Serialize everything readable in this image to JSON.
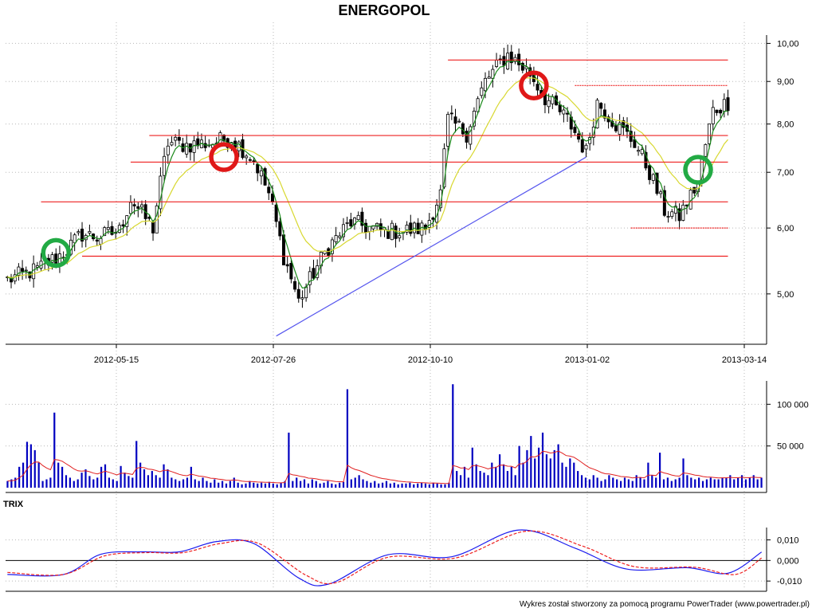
{
  "chart_data": [
    {
      "type": "candlestick",
      "title": "ENERGOPOL",
      "x_tick_labels": [
        "2012-05-15",
        "2012-07-26",
        "2012-10-10",
        "2013-01-02",
        "2013-03-14"
      ],
      "y_tick_labels": [
        "10,00",
        "9,00",
        "8,00",
        "7,00",
        "6,00",
        "5,00"
      ],
      "y_ticks": [
        10,
        9,
        8,
        7,
        6,
        5
      ],
      "ylim": [
        4.35,
        10.6
      ],
      "y_scale": "log",
      "grid": true,
      "price_path": [
        [
          0,
          5.2
        ],
        [
          8,
          5.35
        ],
        [
          15,
          5.6
        ],
        [
          20,
          5.9
        ],
        [
          24,
          5.85
        ],
        [
          30,
          5.95
        ],
        [
          33,
          6.5
        ],
        [
          36,
          6.25
        ],
        [
          39,
          6.0
        ],
        [
          43,
          7.6
        ],
        [
          48,
          7.55
        ],
        [
          55,
          7.6
        ],
        [
          60,
          7.7
        ],
        [
          66,
          7.25
        ],
        [
          70,
          6.6
        ],
        [
          74,
          5.55
        ],
        [
          78,
          4.9
        ],
        [
          81,
          5.2
        ],
        [
          86,
          5.7
        ],
        [
          92,
          6.1
        ],
        [
          100,
          5.95
        ],
        [
          106,
          5.95
        ],
        [
          112,
          6.0
        ],
        [
          116,
          6.6
        ],
        [
          118,
          8.1
        ],
        [
          123,
          7.8
        ],
        [
          128,
          9.0
        ],
        [
          134,
          9.7
        ],
        [
          140,
          9.2
        ],
        [
          144,
          8.6
        ],
        [
          150,
          8.1
        ],
        [
          155,
          7.4
        ],
        [
          158,
          8.5
        ],
        [
          163,
          8.0
        ],
        [
          168,
          7.6
        ],
        [
          172,
          7.0
        ],
        [
          176,
          6.3
        ],
        [
          180,
          6.2
        ],
        [
          185,
          6.8
        ],
        [
          189,
          8.3
        ],
        [
          193,
          8.5
        ]
      ],
      "support_resistance_levels": [
        {
          "value": 9.55,
          "from": 118,
          "to": 193
        },
        {
          "value": 8.9,
          "from": 152,
          "to": 193
        },
        {
          "value": 7.75,
          "from": 38,
          "to": 193
        },
        {
          "value": 7.2,
          "from": 33,
          "to": 193
        },
        {
          "value": 6.45,
          "from": 9,
          "to": 193
        },
        {
          "value": 6.0,
          "from": 167,
          "to": 193
        },
        {
          "value": 5.55,
          "from": 20,
          "to": 193
        }
      ],
      "trendline": {
        "from": [
          72,
          4.45
        ],
        "to": [
          155,
          7.3
        ]
      },
      "markers": [
        {
          "color": "#22aa44",
          "x": 13,
          "y": 5.6
        },
        {
          "color": "#e01818",
          "x": 58,
          "y": 7.3
        },
        {
          "color": "#e01818",
          "x": 141,
          "y": 8.9
        },
        {
          "color": "#22aa44",
          "x": 185,
          "y": 7.05
        }
      ],
      "series": [
        {
          "type": "candles",
          "color": "#000000"
        },
        {
          "type": "short moving average",
          "color": "#1a8a1a"
        },
        {
          "type": "long moving average",
          "color": "#d8d830"
        }
      ]
    },
    {
      "type": "bar",
      "y_tick_labels": [
        "100 000",
        "50 000"
      ],
      "y_ticks": [
        100000,
        50000
      ],
      "ylim": [
        0,
        128000
      ],
      "bar_color": "#0000c0",
      "average_line_color": "#e02020",
      "volumes": [
        8000,
        10000,
        12000,
        25000,
        30000,
        55000,
        52000,
        45000,
        30000,
        8000,
        10000,
        12000,
        90000,
        30000,
        25000,
        15000,
        12000,
        8000,
        10000,
        18000,
        22000,
        14000,
        10000,
        12000,
        25000,
        28000,
        12000,
        10000,
        8000,
        26000,
        18000,
        14000,
        12000,
        56000,
        30000,
        22000,
        15000,
        20000,
        15000,
        12000,
        28000,
        22000,
        12000,
        10000,
        8000,
        10000,
        12000,
        25000,
        10000,
        8000,
        12000,
        8000,
        6000,
        10000,
        6000,
        8000,
        5000,
        8000,
        12000,
        6000,
        4000,
        5000,
        8000,
        6000,
        5000,
        6000,
        5000,
        7000,
        5000,
        4000,
        6000,
        8000,
        66000,
        8000,
        12000,
        8000,
        10000,
        5000,
        10000,
        8000,
        5000,
        6000,
        8000,
        5000,
        4000,
        6000,
        7000,
        118000,
        10000,
        12000,
        15000,
        10000,
        8000,
        6000,
        8000,
        5000,
        6000,
        8000,
        5000,
        6000,
        4000,
        5000,
        5000,
        6000,
        4000,
        5000,
        6000,
        5000,
        4000,
        6000,
        5000,
        4000,
        4000,
        6000,
        124000,
        20000,
        15000,
        25000,
        12000,
        48000,
        28000,
        20000,
        18000,
        15000,
        30000,
        25000,
        40000,
        28000,
        20000,
        25000,
        15000,
        50000,
        30000,
        45000,
        62000,
        35000,
        48000,
        66000,
        40000,
        35000,
        45000,
        52000,
        30000,
        25000,
        35000,
        30000,
        20000,
        15000,
        12000,
        10000,
        15000,
        12000,
        8000,
        10000,
        15000,
        12000,
        10000,
        8000,
        12000,
        10000,
        8000,
        15000,
        12000,
        10000,
        30000,
        15000,
        12000,
        42000,
        10000,
        12000,
        8000,
        10000,
        12000,
        35000,
        15000,
        12000,
        10000,
        12000,
        8000,
        10000,
        12000,
        10000,
        10000,
        12000,
        12000,
        15000,
        10000,
        12000,
        15000,
        10000,
        12000,
        15000,
        10000,
        12000
      ]
    },
    {
      "type": "line",
      "label": "TRIX",
      "y_tick_labels": [
        "0,010",
        "0,000",
        "-0,010"
      ],
      "y_ticks": [
        0.01,
        0.0,
        -0.01
      ],
      "ylim": [
        -0.0142,
        0.016
      ],
      "zero_line": true,
      "series": [
        {
          "style": "solid",
          "color": "#1a1aee",
          "points": [
            [
              0,
              -0.0068
            ],
            [
              15,
              -0.0068
            ],
            [
              25,
              0.003
            ],
            [
              36,
              0.0042
            ],
            [
              46,
              0.0042
            ],
            [
              56,
              0.0092
            ],
            [
              66,
              0.0082
            ],
            [
              78,
              -0.0085
            ],
            [
              86,
              -0.0115
            ],
            [
              102,
              0.0028
            ],
            [
              119,
              0.0018
            ],
            [
              137,
              0.0148
            ],
            [
              152,
              0.006
            ],
            [
              166,
              -0.0042
            ],
            [
              182,
              -0.0035
            ],
            [
              193,
              -0.0062
            ],
            [
              202,
              0.0041
            ]
          ]
        },
        {
          "style": "dashed",
          "color": "#ee2020",
          "points": [
            [
              0,
              -0.0058
            ],
            [
              15,
              -0.0068
            ],
            [
              26,
              0.0022
            ],
            [
              37,
              0.0038
            ],
            [
              47,
              0.0038
            ],
            [
              57,
              0.0082
            ],
            [
              67,
              0.0085
            ],
            [
              80,
              -0.0072
            ],
            [
              88,
              -0.0108
            ],
            [
              102,
              0.0016
            ],
            [
              120,
              0.0012
            ],
            [
              139,
              0.0142
            ],
            [
              154,
              0.007
            ],
            [
              168,
              -0.003
            ],
            [
              184,
              -0.0033
            ],
            [
              195,
              -0.0068
            ],
            [
              202,
              0.0012
            ]
          ]
        }
      ]
    }
  ],
  "footer": {
    "text": "Wykres został stworzony za pomocą programu PowerTrader (www.powertrader.pl)"
  }
}
